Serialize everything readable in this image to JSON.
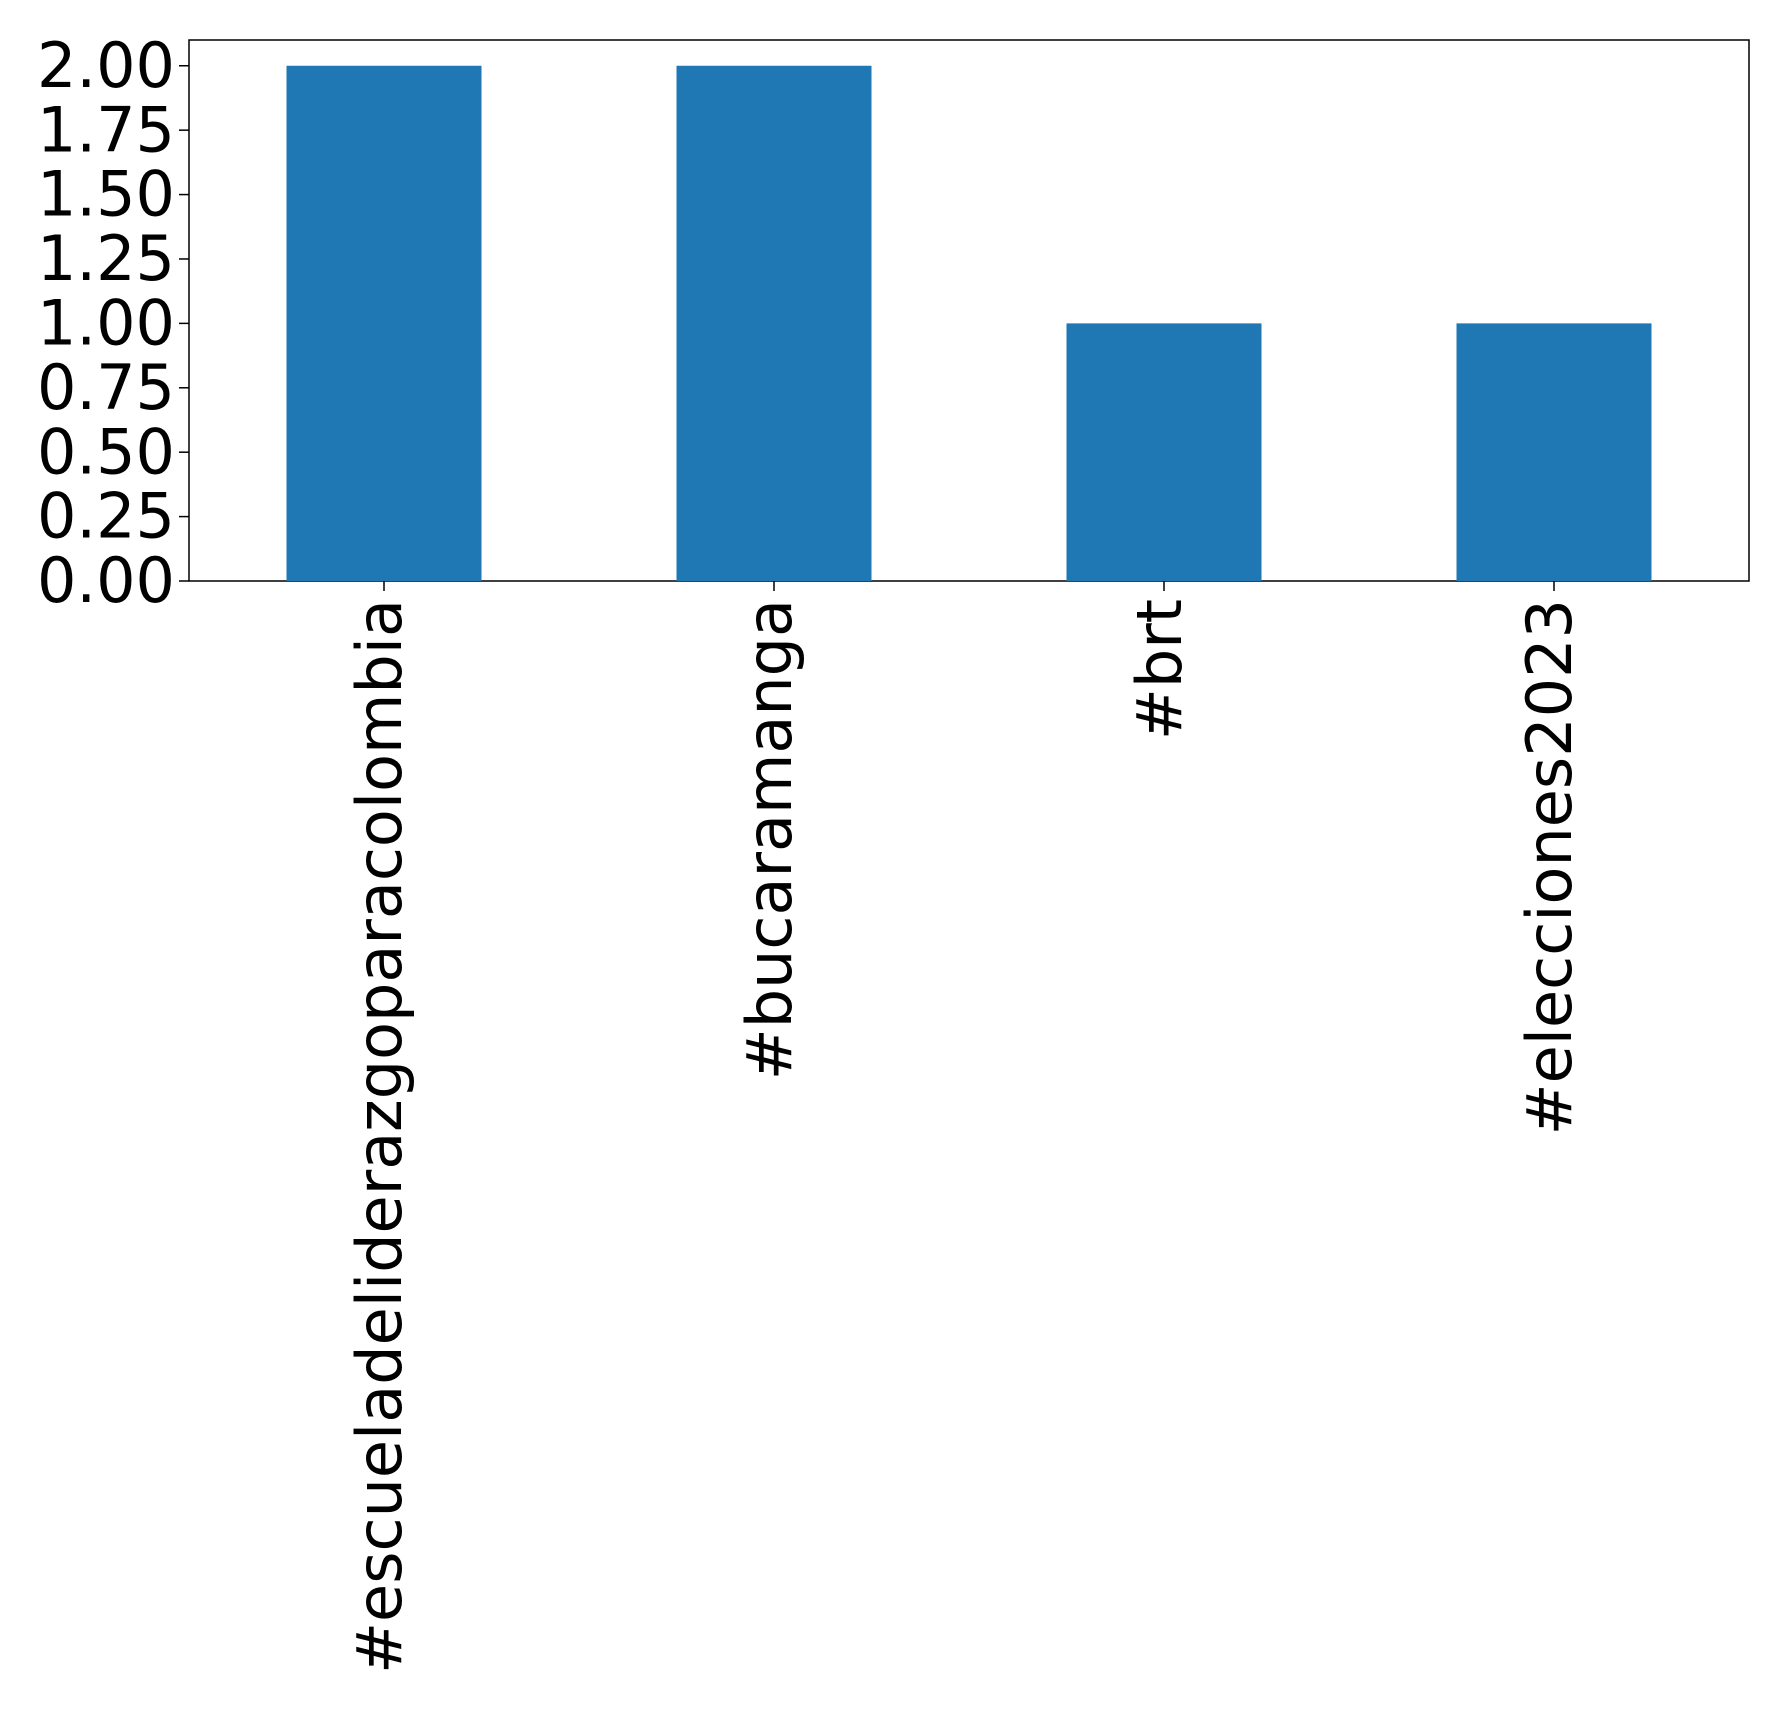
{
  "chart_data": {
    "type": "bar",
    "categories": [
      "#escueladeliderazgoparacolombia",
      "#bucaramanga",
      "#brt",
      "#elecciones2023"
    ],
    "values": [
      2,
      2,
      1,
      1
    ],
    "color": "#1f77b4",
    "ylim": [
      0,
      2.1
    ],
    "yticks": [
      {
        "value": 0,
        "label": "0.00"
      },
      {
        "value": 0.25,
        "label": "0.25"
      },
      {
        "value": 0.5,
        "label": "0.50"
      },
      {
        "value": 0.75,
        "label": "0.75"
      },
      {
        "value": 1,
        "label": "1.00"
      },
      {
        "value": 1.25,
        "label": "1.25"
      },
      {
        "value": 1.5,
        "label": "1.50"
      },
      {
        "value": 1.75,
        "label": "1.75"
      },
      {
        "value": 2,
        "label": "2.00"
      }
    ],
    "grid": false
  }
}
